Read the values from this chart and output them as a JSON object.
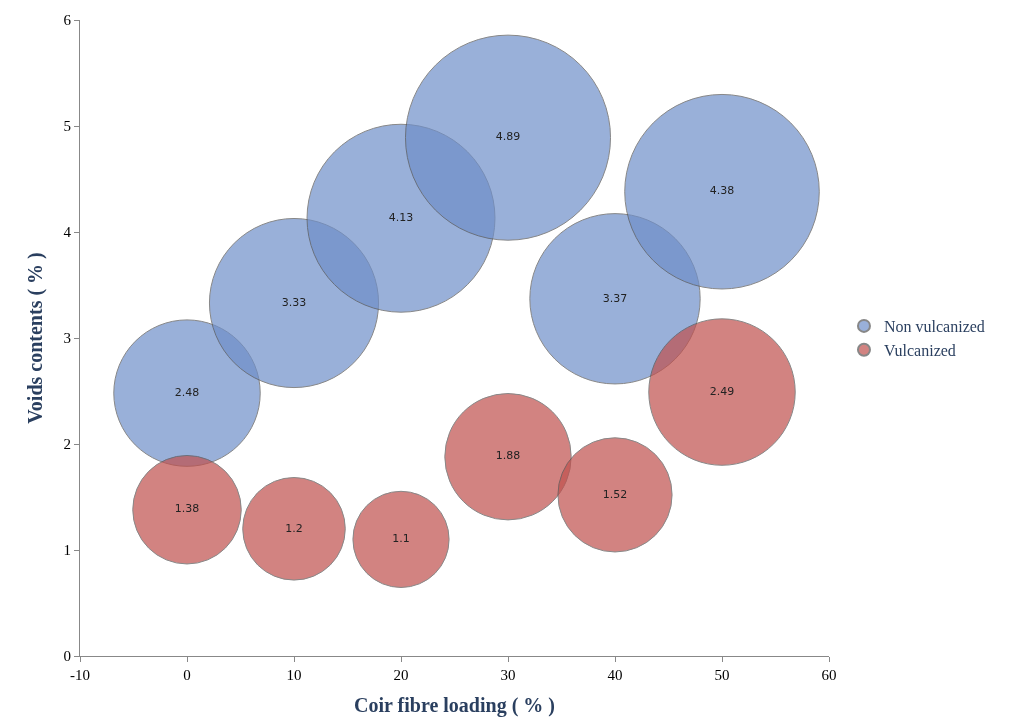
{
  "chart_data": {
    "type": "bubble",
    "xlabel": "Coir fibre loading ( % )",
    "ylabel": "Voids contents ( % )",
    "x": [
      0,
      10,
      20,
      30,
      40,
      50
    ],
    "series": [
      {
        "name": "Non vulcanized",
        "color": "#6f8fc9",
        "values": [
          2.48,
          3.33,
          4.13,
          4.89,
          3.37,
          4.38
        ],
        "sizes": [
          0.51,
          0.68,
          0.84,
          1,
          0.69,
          0.9
        ]
      },
      {
        "name": "Vulcanized",
        "color": "#c0504d",
        "values": [
          1.38,
          1.2,
          1.1,
          1.88,
          1.52,
          2.49
        ],
        "sizes": [
          0.28,
          0.25,
          0.22,
          0.38,
          0.31,
          0.51
        ]
      }
    ],
    "xlim": [
      -10,
      60
    ],
    "xticks": [
      -10,
      0,
      10,
      20,
      30,
      40,
      50,
      60
    ],
    "ylim": [
      0,
      6
    ],
    "yticks": [
      0,
      1,
      2,
      3,
      4,
      5,
      6
    ],
    "data_labels": true,
    "legend": "right",
    "grid": false
  }
}
